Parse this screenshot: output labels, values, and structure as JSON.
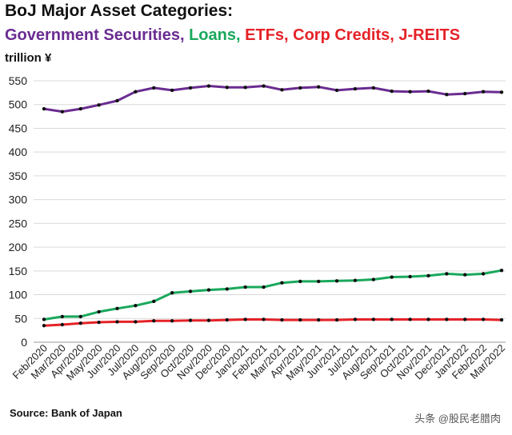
{
  "header": {
    "title": "BoJ Major Asset Categories:",
    "subtitle_parts": [
      {
        "text": "Government Securities",
        "color": "#6a2c91"
      },
      {
        "text": ", ",
        "color": "#6a2c91"
      },
      {
        "text": "Loans",
        "color": "#1aa85c"
      },
      {
        "text": ", ",
        "color": "#1aa85c"
      },
      {
        "text": "ETFs, Corp Credits, J-REITS",
        "color": "#e52228"
      }
    ],
    "unit": "trillion ¥"
  },
  "footer": {
    "source": "Source: Bank of Japan",
    "watermark": "头条 @股民老腊肉"
  },
  "chart_data": {
    "type": "line",
    "x": [
      "Feb/2020",
      "Mar/2020",
      "Apr/2020",
      "May/2020",
      "Jun/2020",
      "Jul/2020",
      "Aug/2020",
      "Sep/2020",
      "Oct/2020",
      "Nov/2020",
      "Dec/2020",
      "Jan/2021",
      "Feb/2021",
      "Mar/2021",
      "Apr/2021",
      "May/2021",
      "Jun/2021",
      "Jul/2021",
      "Aug/2021",
      "Sep/2021",
      "Oct/2021",
      "Nov/2021",
      "Dec/2021",
      "Jan/2022",
      "Feb/2022",
      "Mar/2022"
    ],
    "series": [
      {
        "name": "Government Securities",
        "color": "#6a2c91",
        "values": [
          491,
          485,
          491,
          499,
          508,
          527,
          535,
          530,
          535,
          539,
          536,
          536,
          539,
          531,
          535,
          537,
          530,
          533,
          535,
          528,
          527,
          528,
          521,
          523,
          527,
          526
        ]
      },
      {
        "name": "Loans",
        "color": "#1aa85c",
        "values": [
          48,
          54,
          54,
          64,
          71,
          77,
          86,
          104,
          107,
          110,
          112,
          116,
          116,
          125,
          128,
          128,
          129,
          130,
          132,
          137,
          138,
          140,
          144,
          142,
          144,
          151
        ]
      },
      {
        "name": "ETFs, Corp Credits, J-REITS",
        "color": "#e52228",
        "values": [
          35,
          37,
          40,
          42,
          43,
          43,
          45,
          45,
          46,
          46,
          47,
          48,
          48,
          47,
          47,
          47,
          47,
          48,
          48,
          48,
          48,
          48,
          48,
          48,
          48,
          47
        ]
      }
    ],
    "ylim": [
      0,
      550
    ],
    "yticks": [
      0,
      50,
      100,
      150,
      200,
      250,
      300,
      350,
      400,
      450,
      500,
      550
    ],
    "grid": true,
    "legend": "none"
  }
}
